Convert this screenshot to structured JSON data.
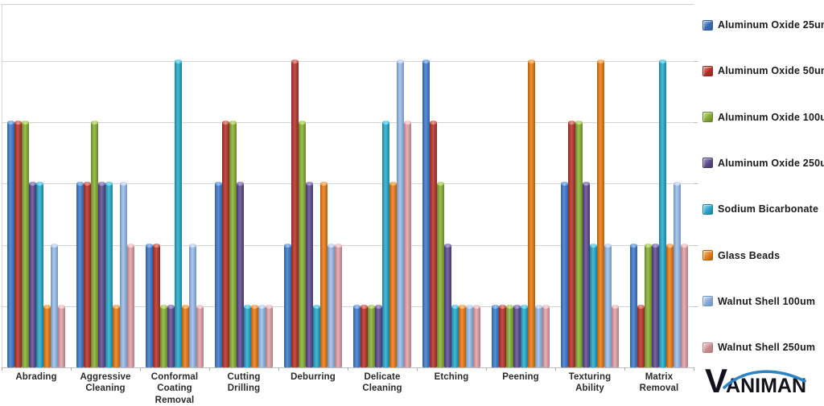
{
  "chart_data": {
    "type": "bar",
    "title": "",
    "xlabel": "",
    "ylabel": "",
    "ylim": [
      0,
      6
    ],
    "gridlines": [
      1,
      2,
      3,
      4,
      5
    ],
    "grid": "on",
    "legend_position": "right",
    "categories": [
      "Abrading",
      "Aggressive Cleaning",
      "Conformal Coating Removal",
      "Cutting Drilling",
      "Deburring",
      "Delicate Cleaning",
      "Etching",
      "Peening",
      "Texturing Ability",
      "Matrix Removal"
    ],
    "series": [
      {
        "name": "Aluminum Oxide 25um",
        "values": [
          4,
          3,
          2,
          3,
          2,
          1,
          5,
          1,
          3,
          2
        ],
        "color": {
          "edge": "#2F5FA0",
          "mid": "#5C8FD6",
          "cap": "#9DC3F0",
          "legend": "#3B68AC"
        }
      },
      {
        "name": "Aluminum Oxide 50um",
        "values": [
          4,
          3,
          2,
          4,
          5,
          1,
          4,
          1,
          4,
          1
        ],
        "color": {
          "edge": "#8F2722",
          "mid": "#C75048",
          "cap": "#E99890",
          "legend": "#B03028"
        }
      },
      {
        "name": "Aluminum Oxide 100um",
        "values": [
          4,
          4,
          1,
          4,
          4,
          1,
          3,
          1,
          4,
          2
        ],
        "color": {
          "edge": "#67862C",
          "mid": "#9CC14F",
          "cap": "#CCE393",
          "legend": "#89A938"
        }
      },
      {
        "name": "Aluminum Oxide 250um",
        "values": [
          3,
          3,
          1,
          3,
          3,
          1,
          2,
          1,
          3,
          2
        ],
        "color": {
          "edge": "#44366B",
          "mid": "#7A68A6",
          "cap": "#B3A3D4",
          "legend": "#5C4A86"
        }
      },
      {
        "name": "Sodium Bicarbonate",
        "values": [
          3,
          3,
          5,
          1,
          1,
          4,
          1,
          1,
          2,
          5
        ],
        "color": {
          "edge": "#1C7F9C",
          "mid": "#45BCD9",
          "cap": "#8FE0F2",
          "legend": "#35A3C4"
        }
      },
      {
        "name": "Glass Beads",
        "values": [
          1,
          1,
          1,
          1,
          3,
          3,
          1,
          5,
          5,
          2
        ],
        "color": {
          "edge": "#B55F07",
          "mid": "#F29038",
          "cap": "#FBC68C",
          "legend": "#E0821E"
        }
      },
      {
        "name": "Walnut Shell 100um",
        "values": [
          2,
          3,
          2,
          1,
          2,
          5,
          1,
          1,
          2,
          3
        ],
        "color": {
          "edge": "#6F94C4",
          "mid": "#AFC9EC",
          "cap": "#D6E4F8",
          "legend": "#89A8D4"
        }
      },
      {
        "name": "Walnut Shell 250um",
        "values": [
          1,
          2,
          1,
          1,
          2,
          4,
          1,
          1,
          1,
          2
        ],
        "color": {
          "edge": "#B37B80",
          "mid": "#E8B3B8",
          "cap": "#F6D9DC",
          "legend": "#C98B8E"
        }
      }
    ]
  },
  "logo": {
    "text": "VANIMAN",
    "arc_color": "#2B84C4"
  }
}
